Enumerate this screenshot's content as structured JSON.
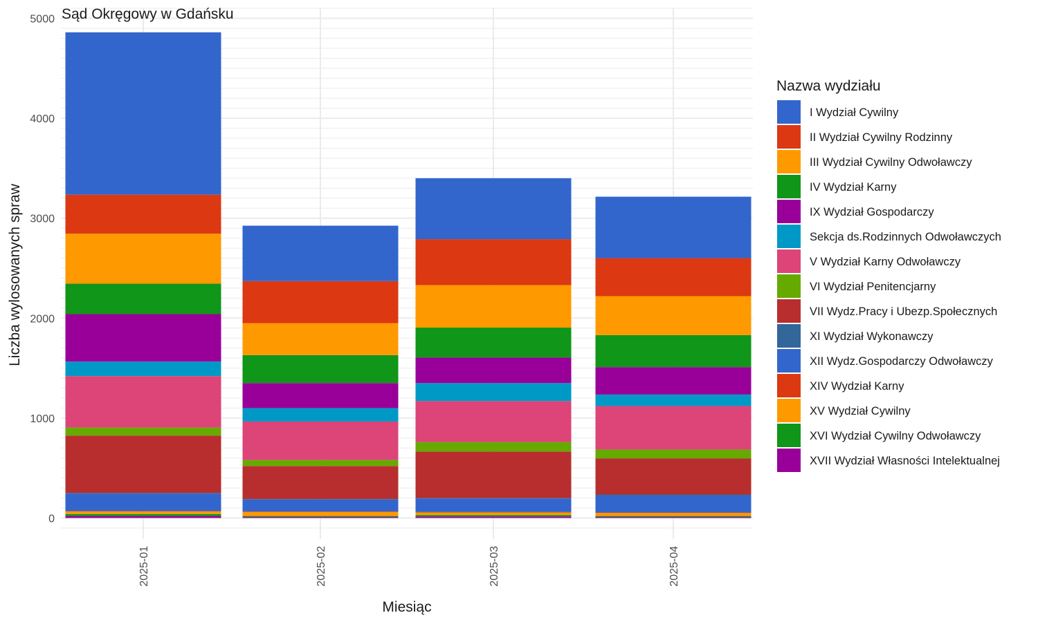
{
  "chart_data": {
    "type": "bar",
    "stacked": true,
    "title": "Sąd Okręgowy w Gdańsku",
    "xlabel": "Miesiąc",
    "ylabel": "Liczba wylosowanych spraw",
    "ylim": [
      0,
      5000
    ],
    "yticks": [
      "0",
      "1000",
      "2000",
      "3000",
      "4000",
      "5000"
    ],
    "grid": true,
    "legend_title": "Nazwa wydziału",
    "legend_position": "right",
    "categories": [
      "2025-01",
      "2025-02",
      "2025-03",
      "2025-04"
    ],
    "series": [
      {
        "name": "XVII Wydział Własności Intelektualnej",
        "color": "#990099",
        "values": [
          20,
          10,
          15,
          10
        ]
      },
      {
        "name": "XVI Wydział Cywilny Odwoławczy",
        "color": "#109618",
        "values": [
          20,
          10,
          15,
          10
        ]
      },
      {
        "name": "XV Wydział Cywilny",
        "color": "#FF9900",
        "values": [
          25,
          40,
          25,
          30
        ]
      },
      {
        "name": "XIV Wydział Karny",
        "color": "#DC3912",
        "values": [
          5,
          5,
          5,
          5
        ]
      },
      {
        "name": "XII Wydz.Gospodarczy Odwoławczy",
        "color": "#3366CC",
        "values": [
          175,
          120,
          135,
          170
        ]
      },
      {
        "name": "XI Wydział Wykonawczy",
        "color": "#336699",
        "values": [
          5,
          5,
          5,
          10
        ]
      },
      {
        "name": "VII Wydz.Pracy i Ubezp.Społecznych",
        "color": "#B82E2E",
        "values": [
          575,
          330,
          465,
          360
        ]
      },
      {
        "name": "VI Wydział Penitencjarny",
        "color": "#66AA00",
        "values": [
          80,
          60,
          95,
          90
        ]
      },
      {
        "name": "V Wydział Karny Odwoławczy",
        "color": "#DD4477",
        "values": [
          515,
          385,
          410,
          435
        ]
      },
      {
        "name": "Sekcja ds.Rodzinnych Odwoławczych",
        "color": "#0099C6",
        "values": [
          145,
          135,
          180,
          115
        ]
      },
      {
        "name": "IX Wydział Gospodarczy",
        "color": "#990099",
        "values": [
          475,
          250,
          255,
          275
        ]
      },
      {
        "name": "IV Wydział Karny",
        "color": "#109618",
        "values": [
          305,
          280,
          300,
          320
        ]
      },
      {
        "name": "III Wydział Cywilny Odwoławczy",
        "color": "#FF9900",
        "values": [
          500,
          320,
          425,
          390
        ]
      },
      {
        "name": "II Wydział Cywilny Rodzinny",
        "color": "#DC3912",
        "values": [
          390,
          420,
          460,
          380
        ]
      },
      {
        "name": "I Wydział Cywilny",
        "color": "#3366CC",
        "values": [
          1625,
          555,
          610,
          615
        ]
      }
    ],
    "legend_order": [
      "I Wydział Cywilny",
      "II Wydział Cywilny Rodzinny",
      "III Wydział Cywilny Odwoławczy",
      "IV Wydział Karny",
      "IX Wydział Gospodarczy",
      "Sekcja ds.Rodzinnych Odwoławczych",
      "V Wydział Karny Odwoławczy",
      "VI Wydział Penitencjarny",
      "VII Wydz.Pracy i Ubezp.Społecznych",
      "XI Wydział Wykonawczy",
      "XII Wydz.Gospodarczy Odwoławczy",
      "XIV Wydział Karny",
      "XV Wydział Cywilny",
      "XVI Wydział Cywilny Odwoławczy",
      "XVII Wydział Własności Intelektualnej"
    ]
  }
}
